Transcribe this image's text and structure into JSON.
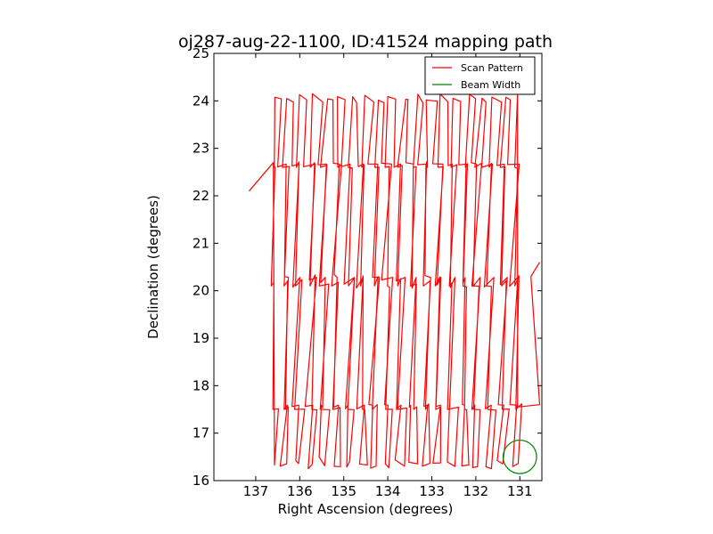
{
  "chart_data": {
    "type": "line",
    "title": "oj287-aug-22-1100, ID:41524 mapping path",
    "xlabel": "Right Ascension (degrees)",
    "ylabel": "Declination (degrees)",
    "xlim": [
      137.95,
      130.5
    ],
    "ylim": [
      16,
      25
    ],
    "xticks": [
      "137",
      "136",
      "135",
      "134",
      "133",
      "132",
      "131"
    ],
    "yticks": [
      "16",
      "17",
      "18",
      "19",
      "20",
      "21",
      "22",
      "23",
      "24",
      "25"
    ],
    "x_tick_values": [
      137,
      136,
      135,
      134,
      133,
      132,
      131
    ],
    "y_tick_values": [
      16,
      17,
      18,
      19,
      20,
      21,
      22,
      23,
      24,
      25
    ],
    "grid": false,
    "legend": {
      "location": "upper right",
      "entries": [
        "Scan Pattern",
        "Beam Width"
      ]
    },
    "series": [
      {
        "name": "Scan Pattern",
        "color": "#ff0000",
        "description": "Raster of vertical scan legs across RA 136.55 to 131.0, Dec 16.25 to 24.1, with horizontal crossings near Dec 17.5, 20.2 and 22.7",
        "scan": {
          "ra_start": 136.55,
          "ra_end": 131.0,
          "ra_step": 0.145,
          "dec_low": 16.25,
          "dec_high": 24.05,
          "bands": [
            17.55,
            20.2,
            22.65
          ],
          "start_point": [
            137.15,
            22.1
          ],
          "end_point": [
            130.55,
            20.6
          ]
        }
      },
      {
        "name": "Beam Width",
        "color": "#008000",
        "circle": {
          "ra": 131.0,
          "dec": 16.5,
          "radius_deg": 0.38
        }
      }
    ]
  }
}
